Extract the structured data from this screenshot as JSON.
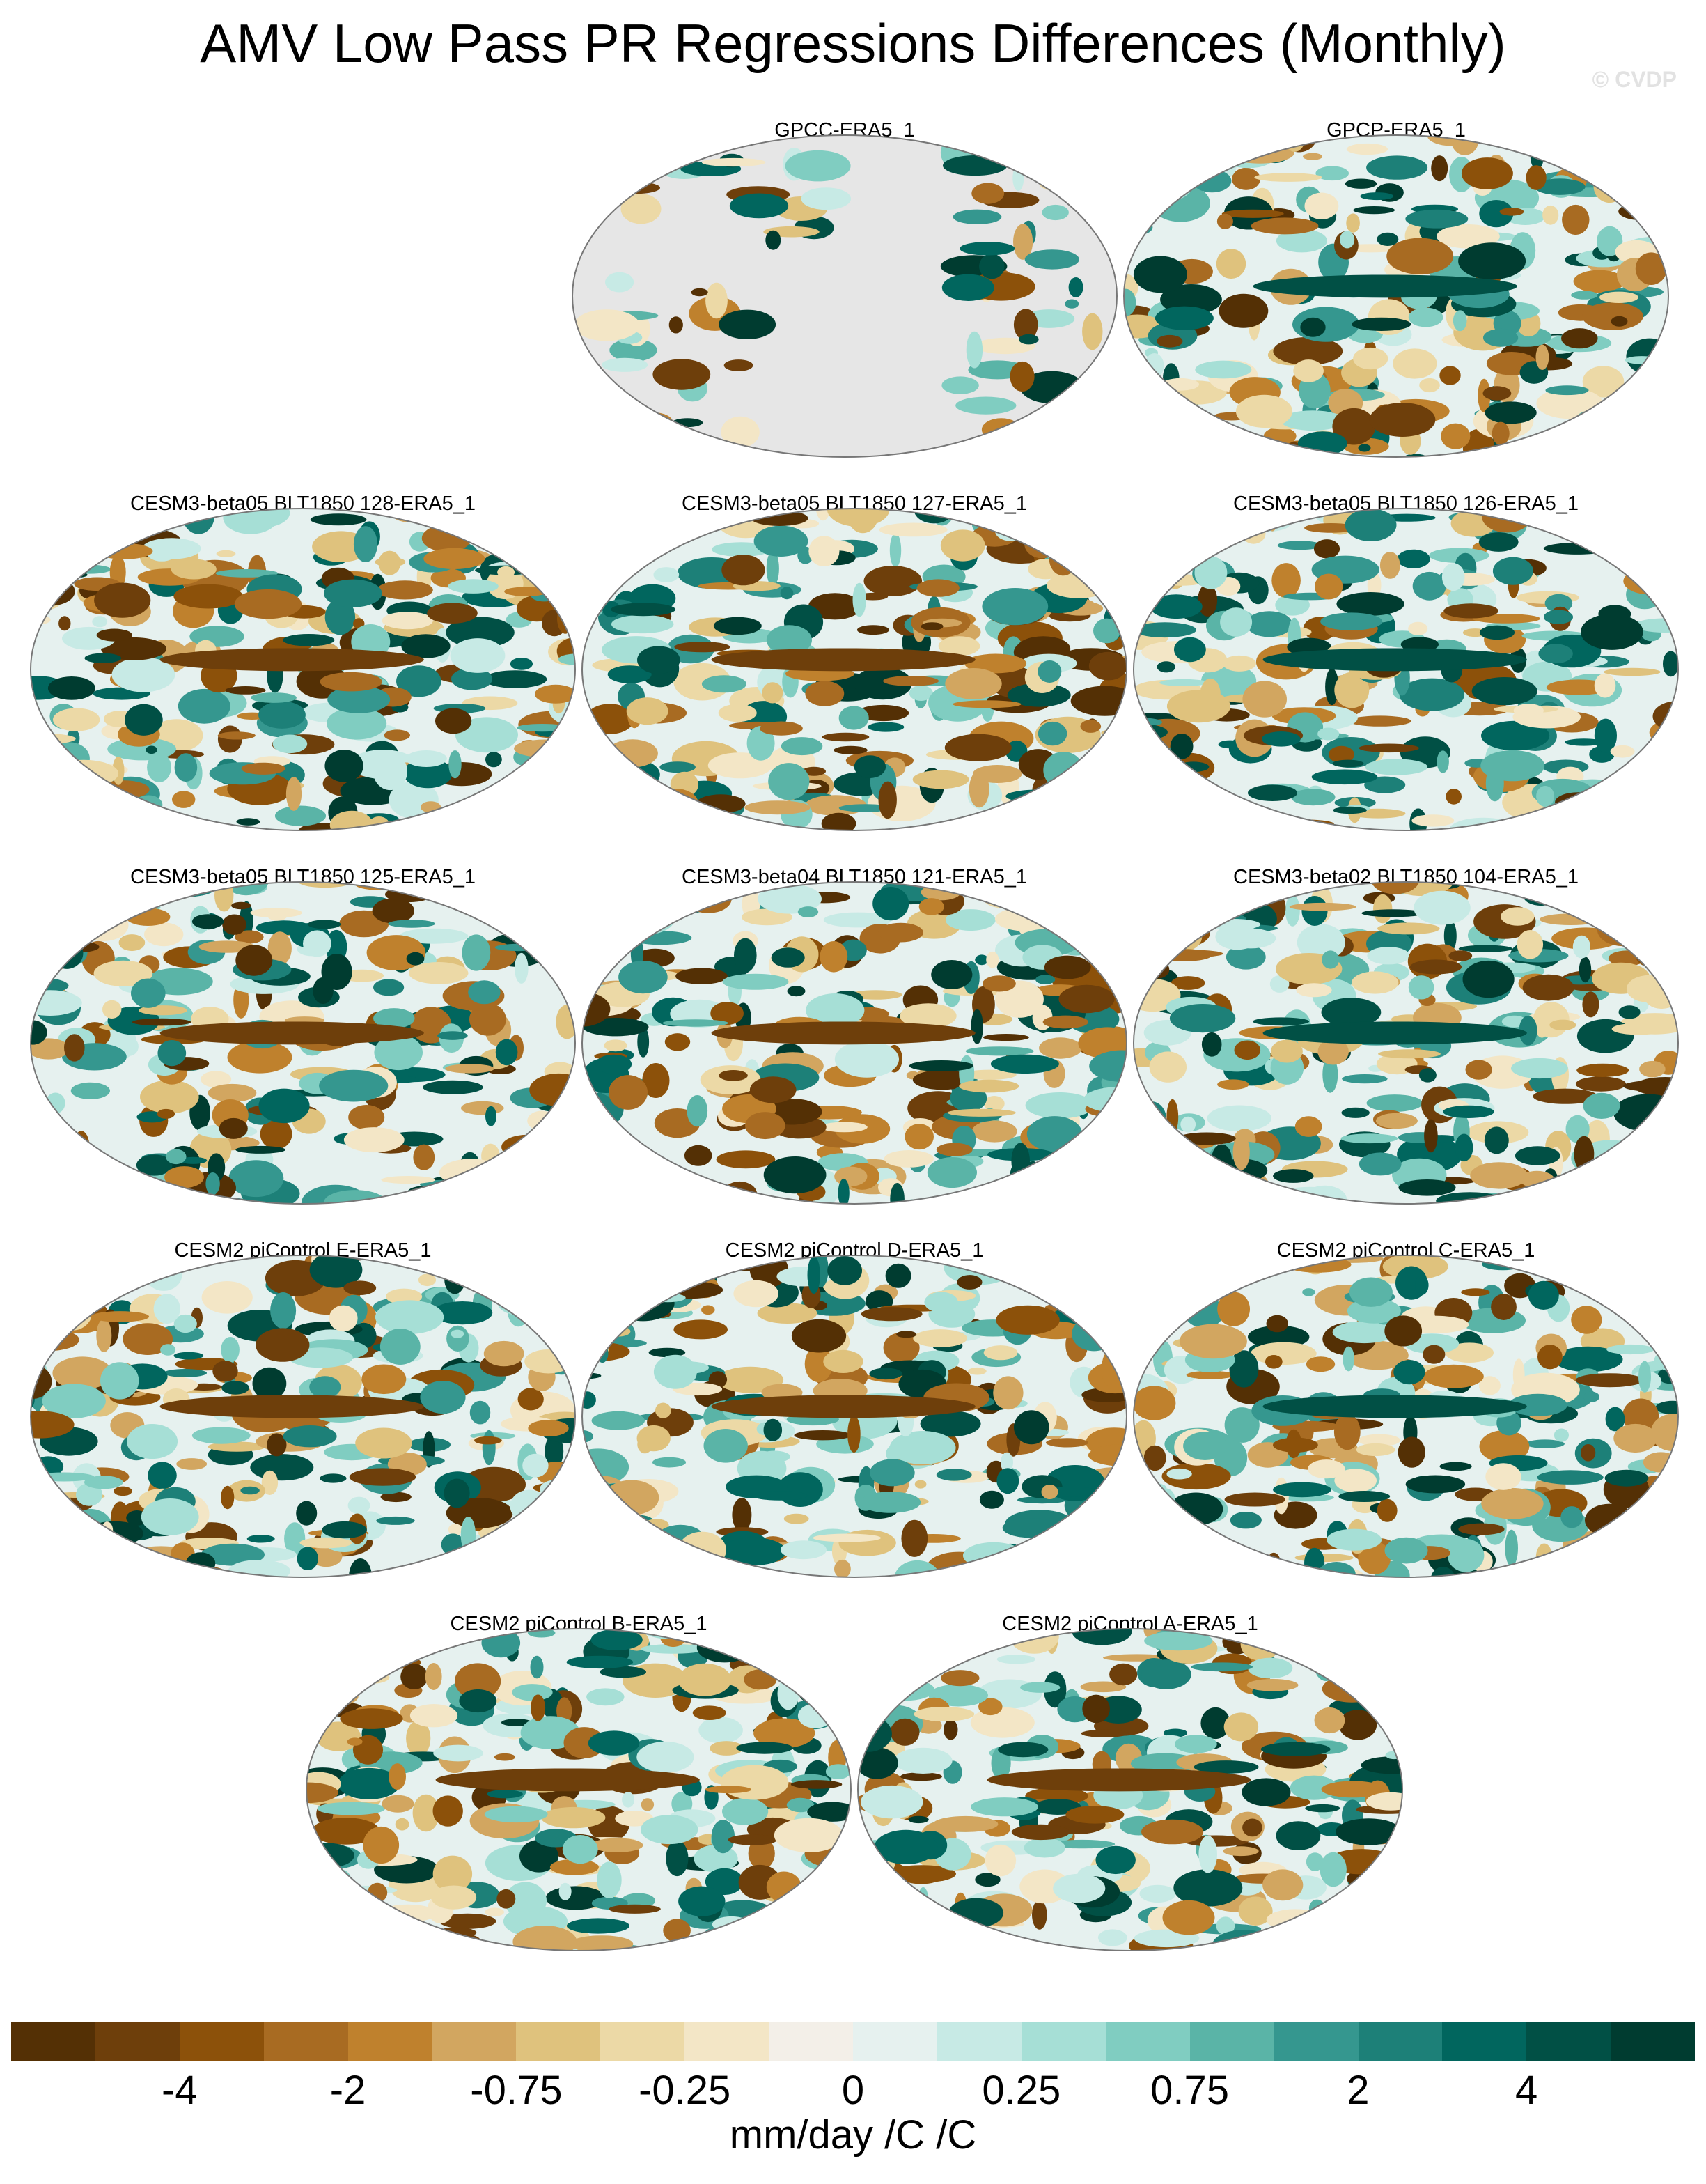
{
  "header": {
    "title": "AMV Low Pass PR Regressions Differences (Monthly)",
    "watermark": "© CVDP"
  },
  "chart_data": {
    "type": "heatmap",
    "projection": "Robinson (Pacific-centred, global maps)",
    "panels": [
      {
        "title": "GPCC-ERA5_1",
        "land_only": true
      },
      {
        "title": "GPCP-ERA5_1"
      },
      {
        "title": "CESM3-beta05 BLT1850 128-ERA5_1"
      },
      {
        "title": "CESM3-beta05 BLT1850 127-ERA5_1"
      },
      {
        "title": "CESM3-beta05 BLT1850 126-ERA5_1"
      },
      {
        "title": "CESM3-beta05 BLT1850 125-ERA5_1"
      },
      {
        "title": "CESM3-beta04 BLT1850 121-ERA5_1"
      },
      {
        "title": "CESM3-beta02 BLT1850 104-ERA5_1"
      },
      {
        "title": "CESM2 piControl E-ERA5_1"
      },
      {
        "title": "CESM2 piControl D-ERA5_1"
      },
      {
        "title": "CESM2 piControl C-ERA5_1"
      },
      {
        "title": "CESM2 piControl B-ERA5_1"
      },
      {
        "title": "CESM2 piControl A-ERA5_1"
      }
    ],
    "colorbar": {
      "colors": [
        "#543005",
        "#6e3f0b",
        "#8c510a",
        "#a86b22",
        "#bf812d",
        "#d2a660",
        "#dfc27d",
        "#ecd9a6",
        "#f3e6c6",
        "#f3efe8",
        "#e6f1ef",
        "#c7eae5",
        "#a6dfd6",
        "#80cdc1",
        "#5ab4a7",
        "#35978f",
        "#1d8078",
        "#01665e",
        "#015045",
        "#003c30"
      ],
      "ticks": [
        {
          "label": "-4",
          "boundary": 2
        },
        {
          "label": "-2",
          "boundary": 4
        },
        {
          "label": "-0.75",
          "boundary": 6
        },
        {
          "label": "-0.25",
          "boundary": 8
        },
        {
          "label": "0",
          "boundary": 10
        },
        {
          "label": "0.25",
          "boundary": 12
        },
        {
          "label": "0.75",
          "boundary": 14
        },
        {
          "label": "2",
          "boundary": 16
        },
        {
          "label": "4",
          "boundary": 18
        }
      ],
      "units": "mm/day /C /C"
    }
  }
}
